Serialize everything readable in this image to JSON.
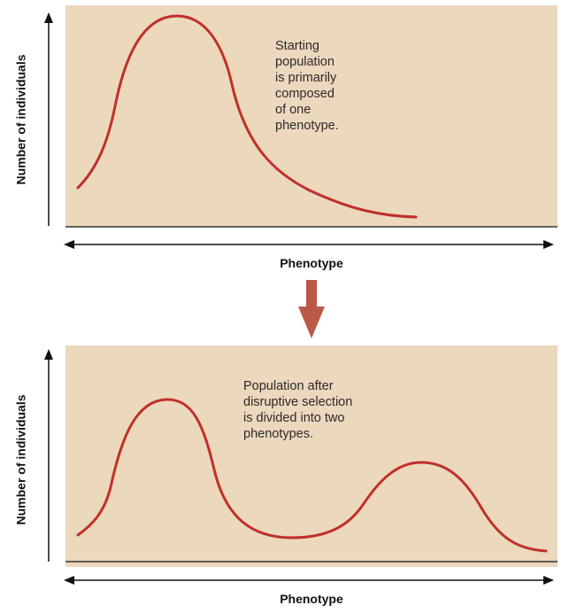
{
  "top_panel": {
    "y_axis_label": "Number of individuals",
    "x_axis_label": "Phenotype",
    "annotation_lines": [
      "Starting",
      "population",
      "is primarily",
      "composed",
      "of one",
      "phenotype."
    ]
  },
  "bottom_panel": {
    "y_axis_label": "Number of individuals",
    "x_axis_label": "Phenotype",
    "annotation_lines": [
      "Population after",
      "disruptive selection",
      "is divided into two",
      "phenotypes."
    ]
  },
  "colors": {
    "plot_background": "#ecd8bd",
    "curve": "#c0302a",
    "axis": "#111111",
    "transition_arrow": "#b85a45"
  },
  "chart_data": [
    {
      "type": "line",
      "title": "",
      "xlabel": "Phenotype",
      "ylabel": "Number of individuals",
      "description_shape": "single peak (unimodal) skewed distribution",
      "grid": false
    },
    {
      "type": "line",
      "title": "",
      "xlabel": "Phenotype",
      "ylabel": "Number of individuals",
      "description_shape": "two peaks (bimodal) distribution",
      "grid": false
    }
  ]
}
